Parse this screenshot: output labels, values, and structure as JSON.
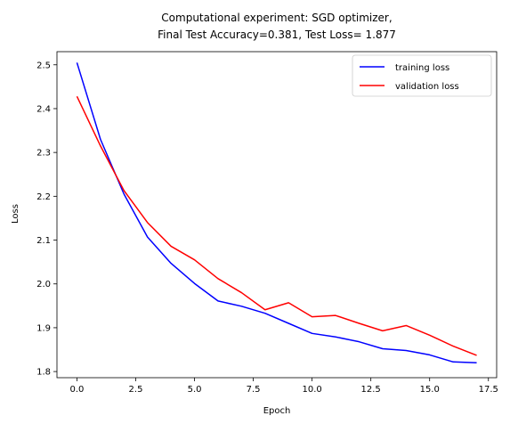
{
  "chart_data": {
    "type": "line",
    "title_line1": "Computational experiment: SGD optimizer,",
    "title_line2": "Final Test Accuracy=0.381, Test Loss= 1.877",
    "xlabel": "Epoch",
    "ylabel": "Loss",
    "xlim": [
      -0.85,
      17.85
    ],
    "ylim": [
      1.786,
      2.53
    ],
    "xticks": [
      0.0,
      2.5,
      5.0,
      7.5,
      10.0,
      12.5,
      15.0,
      17.5
    ],
    "xtick_labels": [
      "0.0",
      "2.5",
      "5.0",
      "7.5",
      "10.0",
      "12.5",
      "15.0",
      "17.5"
    ],
    "yticks": [
      1.8,
      1.9,
      2.0,
      2.1,
      2.2,
      2.3,
      2.4,
      2.5
    ],
    "ytick_labels": [
      "1.8",
      "1.9",
      "2.0",
      "2.1",
      "2.2",
      "2.3",
      "2.4",
      "2.5"
    ],
    "grid": false,
    "legend_position": "top-right",
    "x": [
      0,
      1,
      2,
      3,
      4,
      5,
      6,
      7,
      8,
      9,
      10,
      11,
      12,
      13,
      14,
      15,
      16,
      17
    ],
    "series": [
      {
        "name": "training loss",
        "color": "#0000ff",
        "values": [
          2.505,
          2.33,
          2.205,
          2.107,
          2.047,
          2.001,
          1.961,
          1.949,
          1.933,
          1.91,
          1.887,
          1.879,
          1.868,
          1.852,
          1.848,
          1.838,
          1.822,
          1.82
        ]
      },
      {
        "name": "validation loss",
        "color": "#ff0000",
        "values": [
          2.428,
          2.315,
          2.213,
          2.14,
          2.086,
          2.055,
          2.012,
          1.98,
          1.941,
          1.957,
          1.925,
          1.928,
          1.91,
          1.893,
          1.905,
          1.883,
          1.858,
          1.837
        ]
      }
    ]
  }
}
